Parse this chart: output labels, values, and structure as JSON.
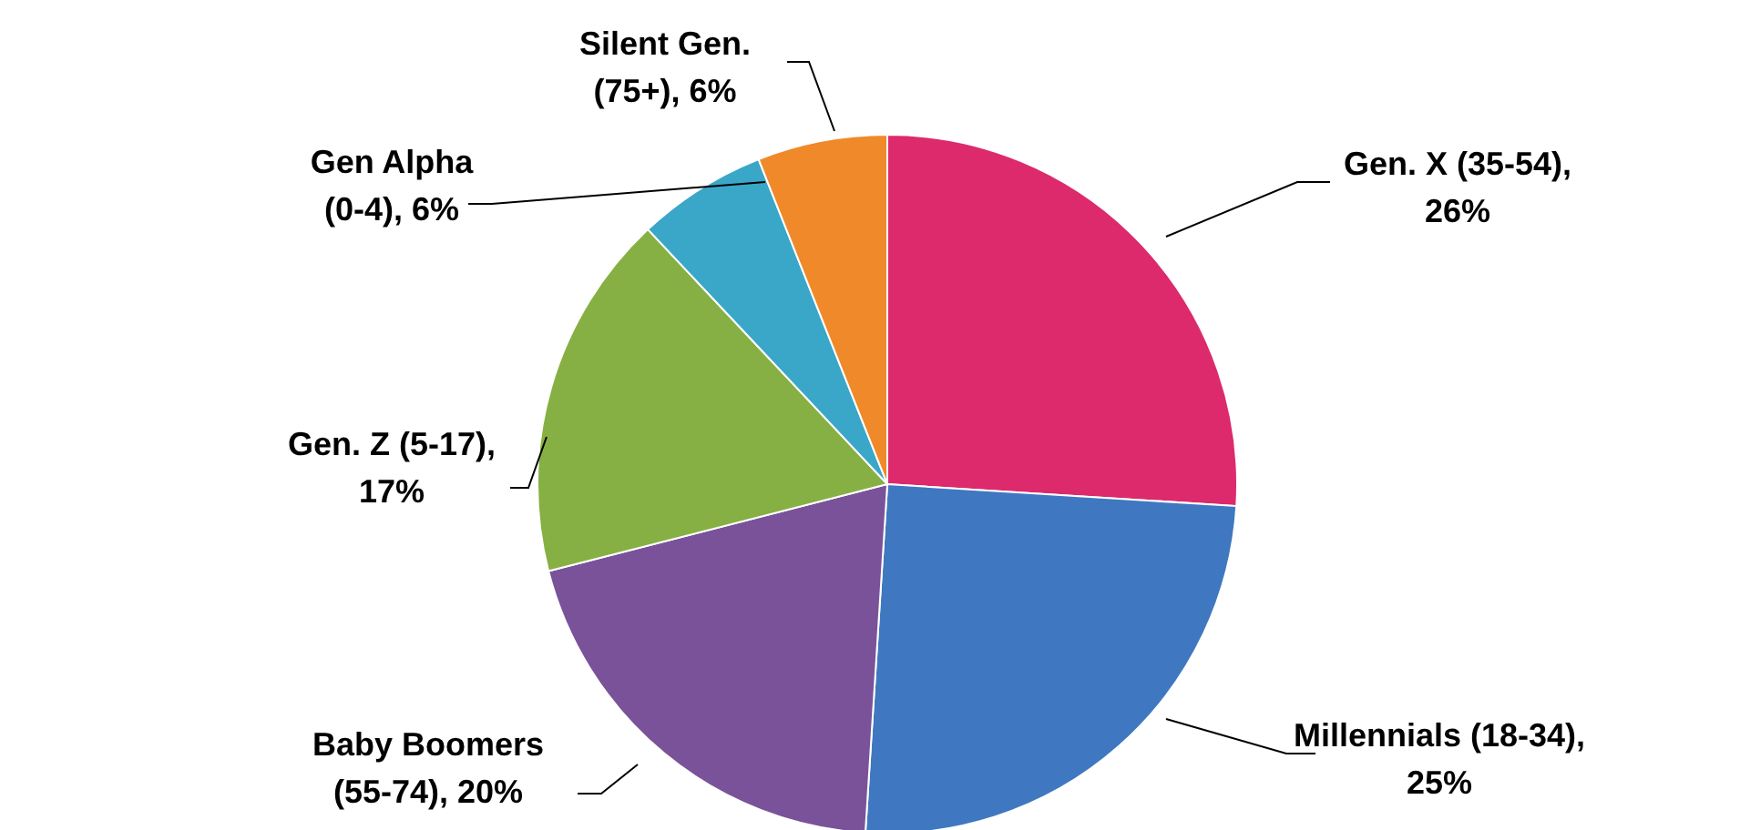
{
  "chart_data": {
    "type": "pie",
    "categories": [
      "Gen. X (35-54)",
      "Millennials (18-34)",
      "Baby Boomers (55-74)",
      "Gen. Z (5-17)",
      "Gen Alpha (0-4)",
      "Silent Gen. (75+)"
    ],
    "values": [
      26,
      25,
      20,
      17,
      6,
      6
    ],
    "value_labels": [
      ", 26%",
      ", 25%",
      ", 20%",
      ", 17%",
      ", 6%",
      ", 6%"
    ],
    "colors": [
      "#dc2a6c",
      "#3f78c0",
      "#7a5299",
      "#86b043",
      "#3aa7c8",
      "#f0892a"
    ]
  }
}
